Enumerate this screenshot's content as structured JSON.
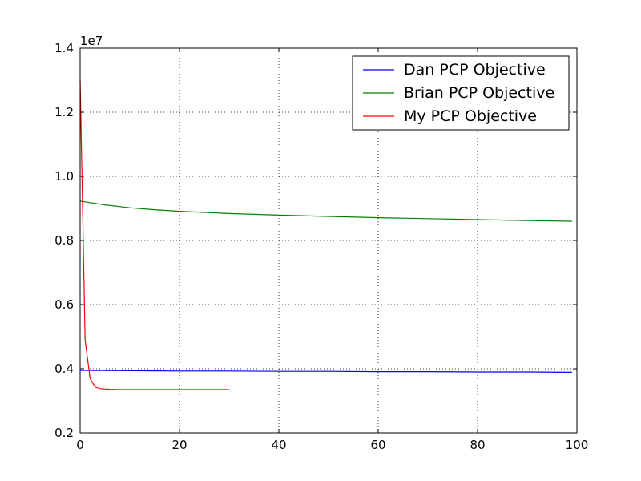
{
  "chart_data": {
    "type": "line",
    "title": "",
    "xlabel": "",
    "ylabel": "",
    "y_offset_label": "1e7",
    "xlim": [
      0,
      100
    ],
    "ylim": [
      0.2,
      1.4
    ],
    "xticks": [
      0,
      20,
      40,
      60,
      80,
      100
    ],
    "yticks": [
      0.2,
      0.4,
      0.6,
      0.8,
      1.0,
      1.2,
      1.4
    ],
    "xtick_labels": [
      "0",
      "20",
      "40",
      "60",
      "80",
      "100"
    ],
    "ytick_labels": [
      "0.2",
      "0.4",
      "0.6",
      "0.8",
      "1.0",
      "1.2",
      "1.4"
    ],
    "grid": true,
    "legend_position": "top-right",
    "series": [
      {
        "name": "Dan PCP Objective",
        "color": "#0000ff",
        "x": [
          0,
          10,
          20,
          30,
          40,
          50,
          60,
          70,
          80,
          90,
          99
        ],
        "y": [
          0.395,
          0.394,
          0.393,
          0.393,
          0.392,
          0.392,
          0.391,
          0.391,
          0.39,
          0.39,
          0.389
        ]
      },
      {
        "name": "Brian PCP Objective",
        "color": "#008000",
        "x": [
          0,
          2,
          5,
          10,
          15,
          20,
          30,
          40,
          50,
          60,
          70,
          80,
          90,
          99
        ],
        "y": [
          0.923,
          0.918,
          0.911,
          0.902,
          0.896,
          0.891,
          0.884,
          0.879,
          0.875,
          0.871,
          0.868,
          0.865,
          0.862,
          0.86
        ]
      },
      {
        "name": "My PCP Objective",
        "color": "#ff0000",
        "x": [
          0,
          1,
          2,
          3,
          4,
          5,
          6,
          8,
          10,
          12,
          15,
          20,
          25,
          30
        ],
        "y": [
          1.3,
          0.49,
          0.37,
          0.343,
          0.338,
          0.337,
          0.336,
          0.335,
          0.335,
          0.335,
          0.335,
          0.335,
          0.335,
          0.335
        ]
      }
    ]
  }
}
